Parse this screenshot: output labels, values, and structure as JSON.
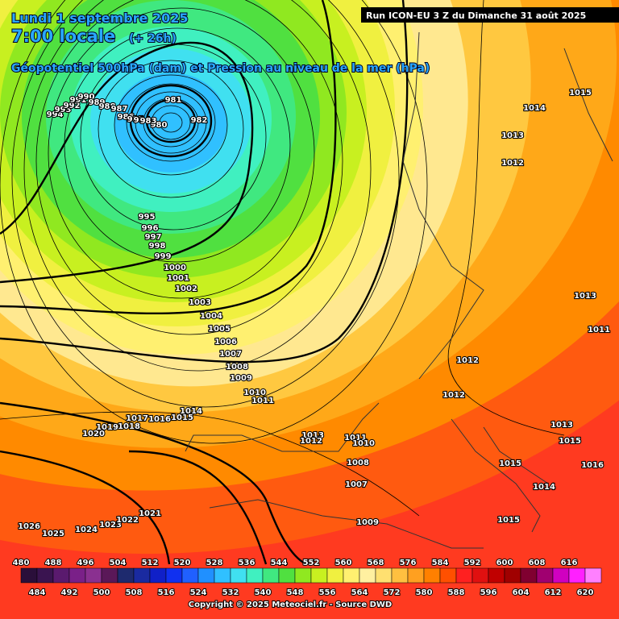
{
  "header": {
    "date": "Lundi 1 septembre 2025",
    "time": "7:00 locale",
    "lead": "(+ 26h)",
    "field": "Géopotentiel 500hPa (dam) et Pression au niveau de la mer (hPa)",
    "run": "Run ICON-EU 3 Z du Dimanche 31 août 2025"
  },
  "isobar_labels": [
    981,
    982,
    980,
    994,
    993,
    992,
    991,
    990,
    989,
    988,
    987,
    986,
    985,
    984,
    983,
    995,
    996,
    997,
    998,
    999,
    1000,
    1001,
    1002,
    1003,
    1004,
    1005,
    1006,
    1007,
    1008,
    1009,
    1010,
    1011,
    1014,
    1017,
    1016,
    1015,
    1019,
    1018,
    1020,
    1026,
    1025,
    1024,
    1023,
    1022,
    1021,
    1013,
    1012,
    1011,
    1010,
    1008,
    1007,
    1009,
    1014,
    1015,
    1013,
    1012,
    1013,
    1011,
    1012,
    1012,
    1013,
    1015,
    1016,
    1015,
    1014,
    1015
  ],
  "legend": {
    "top_labels": [
      480,
      488,
      496,
      504,
      512,
      520,
      528,
      536,
      544,
      552,
      560,
      568,
      576,
      584,
      592,
      600,
      608,
      616
    ],
    "bottom_labels": [
      484,
      492,
      500,
      508,
      516,
      524,
      532,
      540,
      548,
      556,
      564,
      572,
      580,
      588,
      596,
      604,
      612,
      620
    ],
    "colors": [
      "#2a0f3a",
      "#3a1450",
      "#5a1a6e",
      "#7a2088",
      "#8a3090",
      "#5a1858",
      "#1e2a6e",
      "#1a2aa0",
      "#1020c8",
      "#1030f0",
      "#2060ff",
      "#2090ff",
      "#30c0ff",
      "#40e0f0",
      "#40f0c0",
      "#40e880",
      "#50e040",
      "#90e820",
      "#c8f020",
      "#f0f040",
      "#fff070",
      "#fff0a0",
      "#ffe070",
      "#ffc040",
      "#ffa020",
      "#ff8000",
      "#ff5000",
      "#ff2020",
      "#e01010",
      "#c00000",
      "#a00000",
      "#800030",
      "#a00070",
      "#d000c0",
      "#ff20ff",
      "#ff80ff"
    ]
  },
  "copyright": "Copyright © 2025 Meteociel.fr - Source DWD"
}
